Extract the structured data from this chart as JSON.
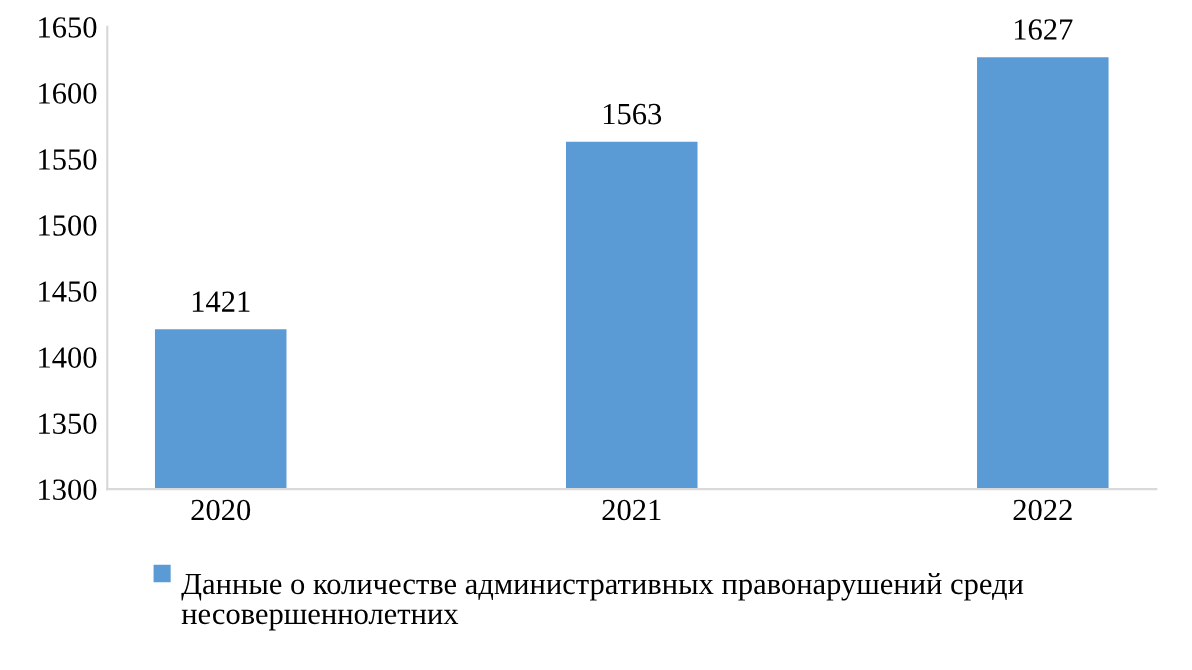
{
  "chart_data": {
    "type": "bar",
    "categories": [
      "2020",
      "2021",
      "2022"
    ],
    "series": [
      {
        "name": "Данные о количестве административных правонарушений среди несовершеннолетних",
        "color": "#5b9bd5",
        "values": [
          1421,
          1563,
          1627
        ]
      }
    ],
    "ylim": [
      1300,
      1650
    ],
    "yticks": [
      1300,
      1350,
      1400,
      1450,
      1500,
      1550,
      1600,
      1650
    ],
    "data_labels": true,
    "legend": "bottom",
    "grid": false
  }
}
